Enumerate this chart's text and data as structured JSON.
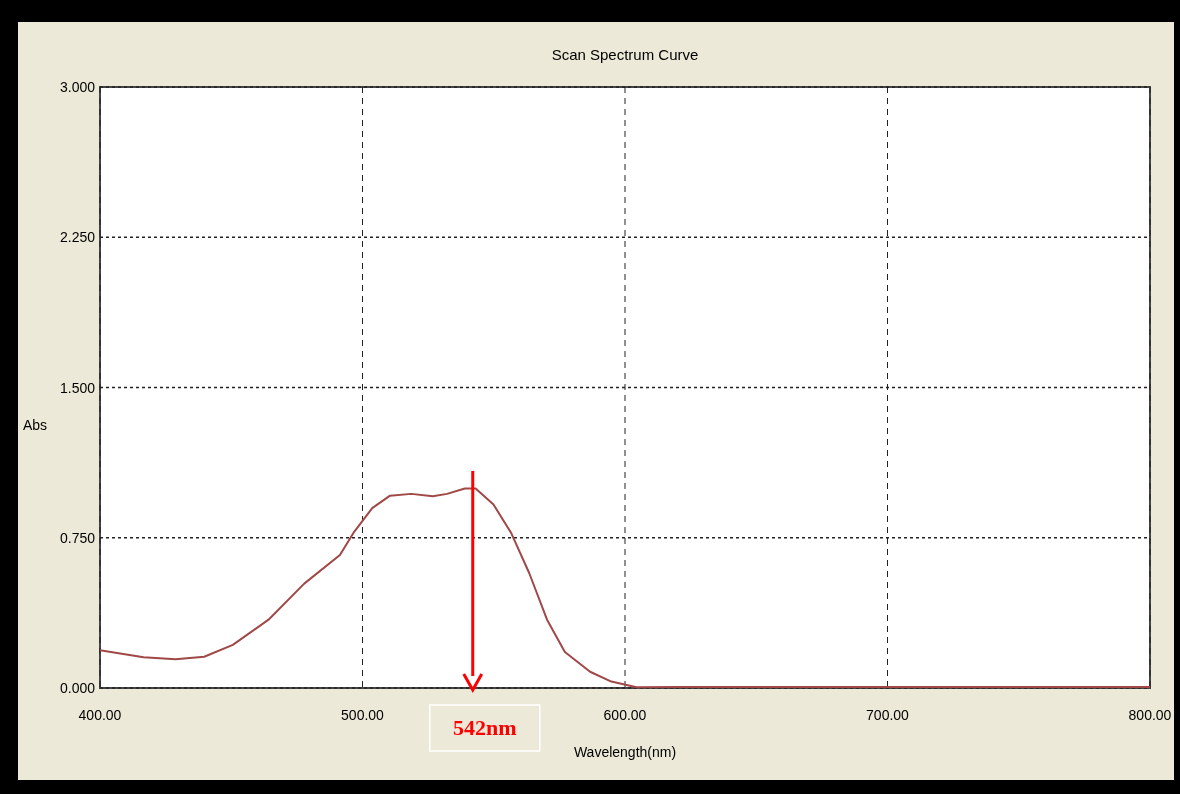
{
  "chart_data": {
    "type": "line",
    "title": "Scan Spectrum Curve",
    "xlabel": "Wavelength(nm)",
    "ylabel": "Abs",
    "x": [
      400,
      416.6,
      428.8,
      439.7,
      450.6,
      464.2,
      477.8,
      491.4,
      496.9,
      503.7,
      510.5,
      518.6,
      526.8,
      532.2,
      539,
      543.1,
      549.9,
      556.7,
      563.5,
      570.3,
      577.1,
      586.7,
      594.8,
      604.4,
      620,
      650,
      700,
      750,
      800
    ],
    "series": [
      {
        "color": "#a04848",
        "values": [
          0.188,
          0.153,
          0.144,
          0.156,
          0.215,
          0.341,
          0.521,
          0.664,
          0.781,
          0.898,
          0.96,
          0.969,
          0.957,
          0.969,
          0.996,
          0.996,
          0.916,
          0.772,
          0.574,
          0.341,
          0.18,
          0.081,
          0.032,
          0.004,
          0.005,
          0.005,
          0.005,
          0.005,
          0.005
        ]
      }
    ],
    "xlim": [
      400,
      800
    ],
    "ylim": [
      0,
      3
    ],
    "xticks": [
      {
        "value": 400,
        "label": "400.00"
      },
      {
        "value": 500,
        "label": "500.00"
      },
      {
        "value": 600,
        "label": "600.00"
      },
      {
        "value": 700,
        "label": "700.00"
      },
      {
        "value": 800,
        "label": "800.00"
      }
    ],
    "yticks": [
      {
        "value": 0,
        "label": "0.000"
      },
      {
        "value": 0.75,
        "label": "0.750"
      },
      {
        "value": 1.5,
        "label": "1.500"
      },
      {
        "value": 2.25,
        "label": "2.250"
      },
      {
        "value": 3,
        "label": "3.000"
      }
    ],
    "grid": true,
    "marker": "none",
    "line_style": "solid",
    "ref_lines": [
      {
        "axis": "x",
        "value": 542,
        "label": "542nm",
        "color": "#ff0000"
      }
    ]
  }
}
